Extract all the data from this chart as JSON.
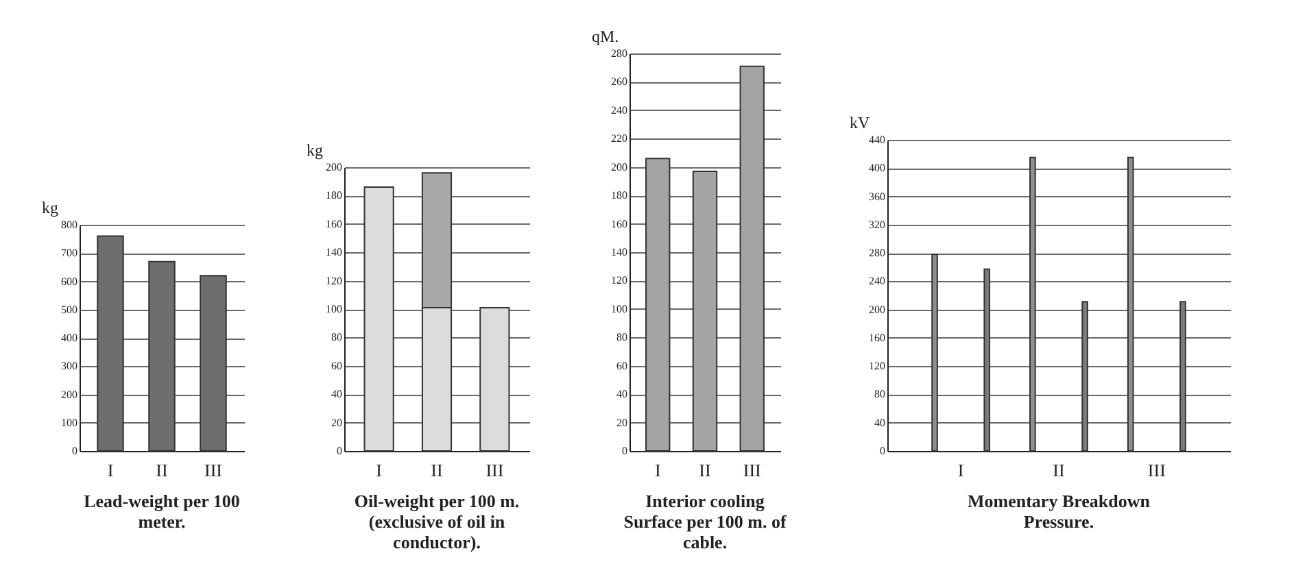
{
  "chart_data": [
    {
      "type": "bar",
      "title": "Lead-weight per 100 meter.",
      "ylabel": "kg",
      "categories": [
        "I",
        "II",
        "III"
      ],
      "values": [
        760,
        670,
        620
      ],
      "color": "#6e6e6e",
      "ylim": [
        0,
        800
      ],
      "yticks": [
        0,
        100,
        200,
        300,
        400,
        500,
        600,
        700,
        800
      ],
      "grid": "y"
    },
    {
      "type": "bar",
      "title": "Oil-weight per 100 m. (exclusive of oil in conductor).",
      "ylabel": "kg",
      "categories": [
        "I",
        "II",
        "III"
      ],
      "stacked": true,
      "series": [
        {
          "color": "#dcdcdc",
          "values": [
            186,
            101,
            101
          ]
        },
        {
          "color": "#a9a9a9",
          "values": [
            null,
            95,
            null
          ]
        }
      ],
      "ylim": [
        0,
        200
      ],
      "yticks": [
        0,
        20,
        40,
        60,
        80,
        100,
        120,
        140,
        160,
        180,
        200
      ],
      "grid": "y"
    },
    {
      "type": "bar",
      "title": "Interior cooling Surface per 100 m. of cable.",
      "ylabel": "qM.",
      "categories": [
        "I",
        "II",
        "III"
      ],
      "values": [
        206,
        197,
        271
      ],
      "color": "#a4a4a4",
      "ylim": [
        0,
        280
      ],
      "yticks": [
        0,
        20,
        40,
        60,
        80,
        100,
        120,
        140,
        160,
        180,
        200,
        220,
        240,
        260,
        280
      ],
      "grid": "y"
    },
    {
      "type": "bar",
      "title": "Momentary Breakdown Pressure.",
      "ylabel": "kV",
      "categories": [
        "I",
        "II",
        "III"
      ],
      "series": [
        {
          "color": "#8f8f8f",
          "values": [
            278,
            415,
            415
          ]
        },
        {
          "color": "#7c7c7c",
          "values": [
            257,
            211,
            211
          ]
        }
      ],
      "ylim": [
        0,
        440
      ],
      "yticks": [
        0,
        40,
        80,
        120,
        160,
        200,
        240,
        280,
        320,
        360,
        400,
        440
      ],
      "grid": "y"
    }
  ]
}
